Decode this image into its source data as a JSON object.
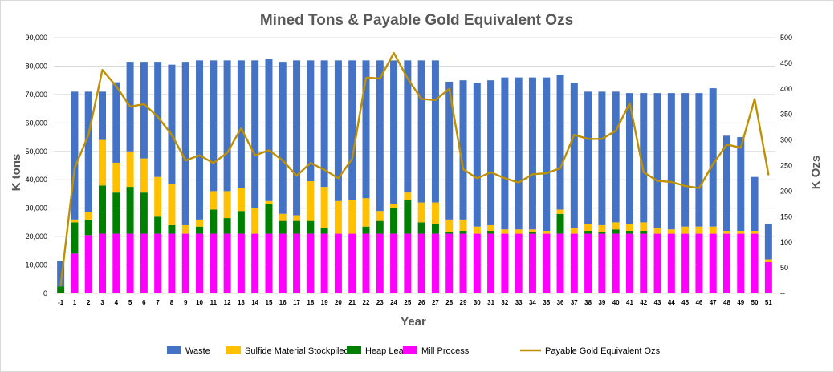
{
  "chart_data": {
    "type": "bar",
    "stacked": true,
    "secondary_type": "line",
    "title": "Mined Tons & Payable Gold Equivalent Ozs",
    "xlabel": "Year",
    "ylabel": "K tons",
    "y2label": "K Ozs",
    "ylim": [
      0,
      90000
    ],
    "y2lim": [
      0,
      500
    ],
    "yticks": [
      "0",
      "10,000",
      "20,000",
      "30,000",
      "40,000",
      "50,000",
      "60,000",
      "70,000",
      "80,000",
      "90,000"
    ],
    "y2ticks": [
      "--",
      "50",
      "100",
      "150",
      "200",
      "250",
      "300",
      "350",
      "400",
      "450",
      "500"
    ],
    "grid": true,
    "legend_position": "bottom",
    "categories": [
      "-1",
      "1",
      "2",
      "3",
      "4",
      "5",
      "6",
      "7",
      "8",
      "9",
      "10",
      "11",
      "12",
      "13",
      "14",
      "15",
      "16",
      "17",
      "18",
      "19",
      "20",
      "21",
      "22",
      "23",
      "24",
      "25",
      "26",
      "27",
      "28",
      "29",
      "30",
      "31",
      "32",
      "33",
      "34",
      "35",
      "36",
      "37",
      "38",
      "39",
      "40",
      "41",
      "42",
      "43",
      "44",
      "45",
      "46",
      "47",
      "48",
      "49",
      "50",
      "51"
    ],
    "series": [
      {
        "name": "Mill Process",
        "color": "#ff00ff",
        "values": [
          0,
          14000,
          20500,
          21000,
          21000,
          21000,
          21000,
          21000,
          21000,
          21000,
          21000,
          21000,
          21000,
          21000,
          21000,
          21000,
          21000,
          21000,
          21000,
          21000,
          21000,
          21000,
          21000,
          21000,
          21000,
          21000,
          21000,
          21000,
          21000,
          21000,
          21000,
          21000,
          21000,
          21000,
          21000,
          21000,
          21000,
          21000,
          21000,
          21000,
          21000,
          21000,
          21000,
          21000,
          21000,
          21000,
          21000,
          21000,
          21000,
          21000,
          21000,
          11000
        ]
      },
      {
        "name": "Heap Leach",
        "color": "#008000",
        "values": [
          2500,
          11000,
          5500,
          17000,
          14500,
          16500,
          14500,
          6000,
          3000,
          0,
          2500,
          8500,
          5500,
          8000,
          0,
          10500,
          4500,
          4500,
          4500,
          2000,
          0,
          0,
          2500,
          4500,
          9000,
          12000,
          4000,
          3500,
          500,
          1000,
          0,
          1000,
          0,
          0,
          500,
          0,
          7000,
          0,
          1000,
          500,
          1500,
          1000,
          1000,
          0,
          0,
          0,
          0,
          0,
          0,
          0,
          0,
          0
        ]
      },
      {
        "name": "Sulfide Material Stockpiled",
        "color": "#ffc000",
        "values": [
          0,
          1000,
          2500,
          16000,
          10500,
          12500,
          12000,
          14000,
          14500,
          3000,
          2500,
          6500,
          9500,
          8000,
          9000,
          1000,
          2500,
          2000,
          14000,
          14500,
          11500,
          12000,
          10000,
          3500,
          1500,
          2500,
          7000,
          7500,
          4500,
          4000,
          2500,
          2000,
          1500,
          1500,
          1000,
          1000,
          1500,
          2000,
          2500,
          2500,
          2500,
          2500,
          3000,
          2000,
          1500,
          2500,
          2500,
          2500,
          1000,
          1000,
          1000,
          1000
        ]
      },
      {
        "name": "Waste",
        "color": "#4472c4",
        "values": [
          9000,
          45000,
          42500,
          17000,
          28300,
          31500,
          34000,
          40500,
          42000,
          57500,
          56000,
          46000,
          46000,
          45000,
          52000,
          50000,
          53500,
          54500,
          42500,
          44500,
          49500,
          49000,
          48500,
          53000,
          50500,
          46500,
          50000,
          50000,
          48500,
          49000,
          50500,
          51000,
          53500,
          53500,
          53500,
          54000,
          47500,
          51000,
          46500,
          47000,
          46000,
          46000,
          45500,
          47500,
          48000,
          47000,
          47000,
          48700,
          33500,
          33000,
          19000,
          12500
        ]
      },
      {
        "name": "Payable Gold Equivalent Ozs",
        "color": "#bf9000",
        "axis": "secondary",
        "values": [
          15,
          245,
          310,
          437,
          405,
          365,
          370,
          345,
          310,
          260,
          270,
          255,
          275,
          323,
          270,
          280,
          260,
          230,
          255,
          242,
          225,
          263,
          422,
          420,
          470,
          420,
          380,
          378,
          400,
          243,
          225,
          237,
          225,
          217,
          233,
          235,
          245,
          310,
          302,
          302,
          318,
          372,
          237,
          220,
          218,
          210,
          206,
          253,
          291,
          285,
          380,
          232
        ]
      }
    ]
  }
}
